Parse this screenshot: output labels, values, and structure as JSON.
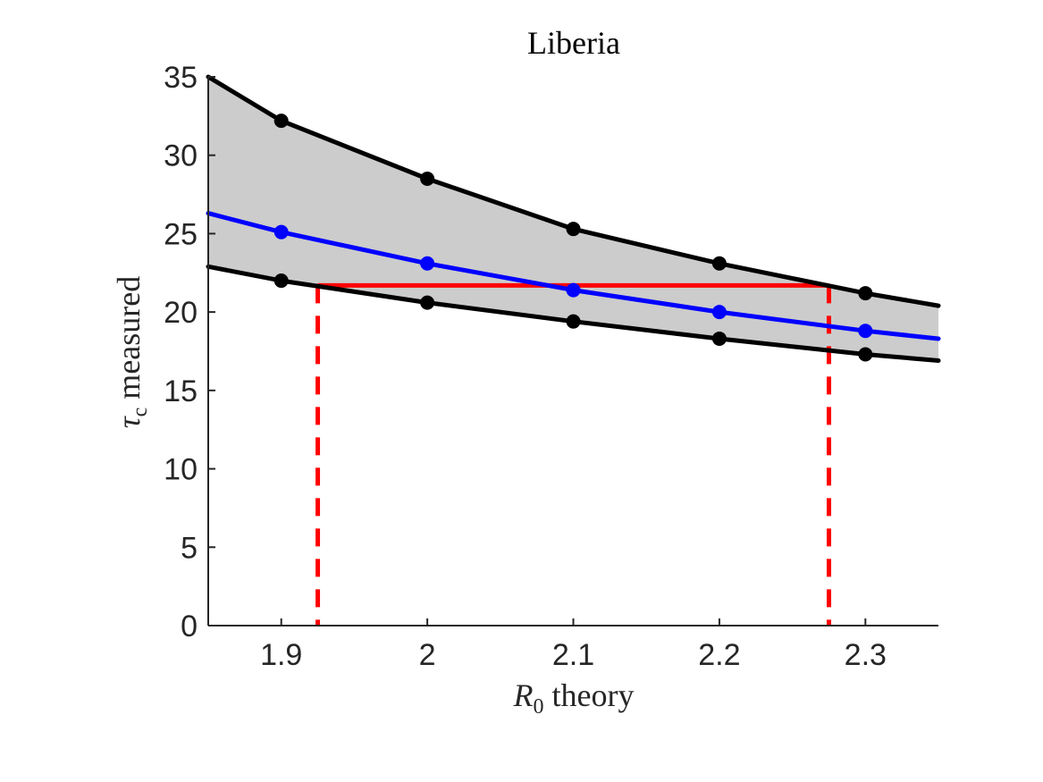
{
  "chart_data": {
    "type": "line",
    "title": "Liberia",
    "xlabel": {
      "symbol": "R",
      "subscript": "0",
      "text": " theory"
    },
    "ylabel": {
      "symbol": "τ",
      "subscript": "c",
      "text": " measured"
    },
    "xlim": [
      1.85,
      2.35
    ],
    "ylim": [
      0,
      35
    ],
    "xticks": [
      1.9,
      2.0,
      2.1,
      2.2,
      2.3
    ],
    "xtick_labels": [
      "1.9",
      "2",
      "2.1",
      "2.2",
      "2.3"
    ],
    "yticks": [
      0,
      5,
      10,
      15,
      20,
      25,
      30,
      35
    ],
    "ytick_labels": [
      "0",
      "5",
      "10",
      "15",
      "20",
      "25",
      "30",
      "35"
    ],
    "grid": false,
    "legend": "none",
    "series": [
      {
        "role": "upper",
        "color": "#000000",
        "curve": {
          "x": [
            1.85,
            1.9,
            2.0,
            2.1,
            2.2,
            2.3,
            2.35
          ],
          "y": [
            35.0,
            32.2,
            28.5,
            25.3,
            23.1,
            21.2,
            20.4
          ]
        },
        "markers": {
          "x": [
            1.9,
            2.0,
            2.1,
            2.2,
            2.3
          ],
          "y": [
            32.2,
            28.5,
            25.3,
            23.1,
            21.2
          ]
        }
      },
      {
        "role": "middle",
        "color": "#0000ff",
        "curve": {
          "x": [
            1.85,
            1.9,
            2.0,
            2.1,
            2.2,
            2.3,
            2.35
          ],
          "y": [
            26.3,
            25.1,
            23.1,
            21.4,
            20.0,
            18.8,
            18.3
          ]
        },
        "markers": {
          "x": [
            1.9,
            2.0,
            2.1,
            2.2,
            2.3
          ],
          "y": [
            25.1,
            23.1,
            21.4,
            20.0,
            18.8
          ]
        }
      },
      {
        "role": "lower",
        "color": "#000000",
        "curve": {
          "x": [
            1.85,
            1.9,
            2.0,
            2.1,
            2.2,
            2.3,
            2.35
          ],
          "y": [
            22.9,
            22.0,
            20.6,
            19.4,
            18.3,
            17.3,
            16.9
          ]
        },
        "markers": {
          "x": [
            1.9,
            2.0,
            2.1,
            2.2,
            2.3
          ],
          "y": [
            22.0,
            20.6,
            19.4,
            18.3,
            17.3
          ]
        }
      }
    ],
    "band": {
      "between": [
        "upper",
        "lower"
      ],
      "color": "#cccccc"
    },
    "annotation": {
      "color": "#ff0000",
      "level_y": 21.7,
      "x_low": 1.925,
      "x_high": 2.275
    }
  }
}
